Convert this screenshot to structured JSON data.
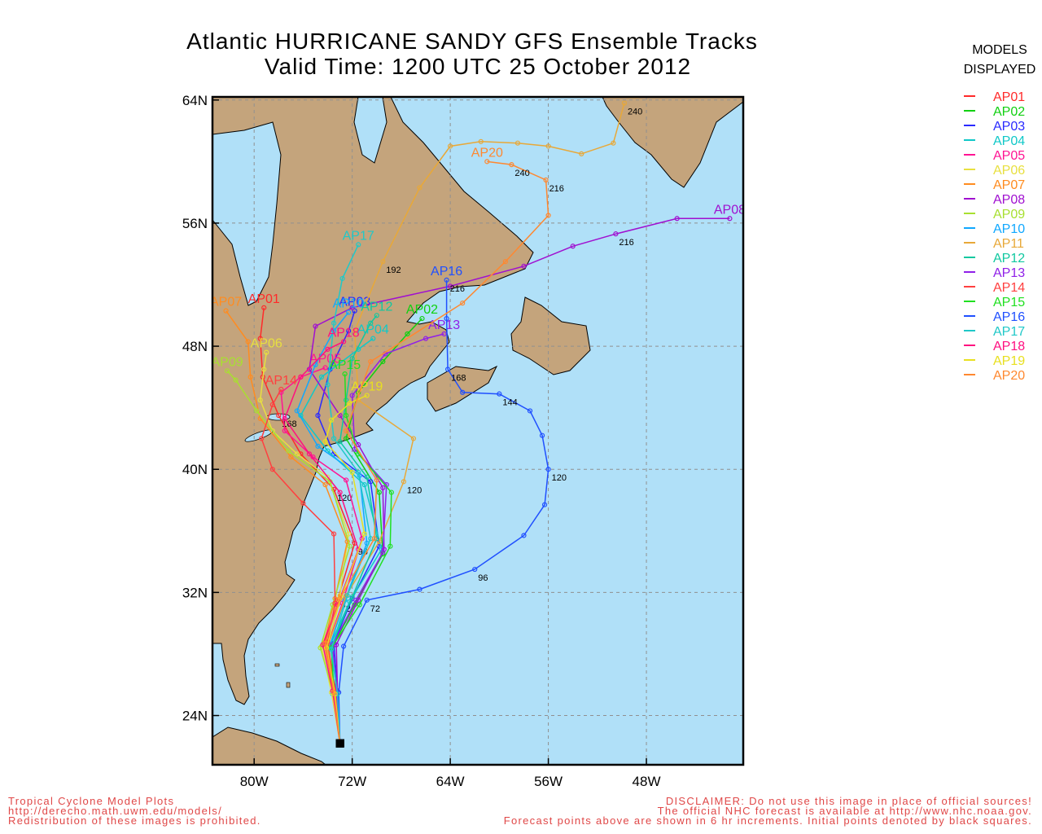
{
  "chart_data": {
    "type": "map",
    "title": "Atlantic HURRICANE SANDY GFS Ensemble Tracks",
    "subtitle": "Valid Time: 1200 UTC 25 October 2012",
    "legend_title": [
      "MODELS",
      "DISPLAYED"
    ],
    "footer_left": [
      "Tropical Cyclone Model Plots",
      "http://derecho.math.uwm.edu/models/",
      "Redistribution of these images is prohibited."
    ],
    "footer_right": [
      "DISCLAIMER: Do not use this image in place of official sources!",
      "The official NHC forecast is available at http://www.nhc.noaa.gov.",
      "Forecast points above are shown in 6 hr increments. Initial points denoted by black squares."
    ],
    "xlim": [
      -83.4,
      -40.1
    ],
    "ylim": [
      20.8,
      64.2
    ],
    "xticks": [
      {
        "value": -80,
        "label": "80W"
      },
      {
        "value": -72,
        "label": "72W"
      },
      {
        "value": -64,
        "label": "64W"
      },
      {
        "value": -56,
        "label": "56W"
      },
      {
        "value": -48,
        "label": "48W"
      }
    ],
    "yticks": [
      {
        "value": 24,
        "label": "24N"
      },
      {
        "value": 32,
        "label": "32N"
      },
      {
        "value": 40,
        "label": "40N"
      },
      {
        "value": 48,
        "label": "48N"
      },
      {
        "value": 56,
        "label": "56N"
      },
      {
        "value": 64,
        "label": "64N"
      }
    ],
    "grid": true,
    "series": [
      {
        "name": "AP01",
        "color": "#ff2a2a",
        "points": [
          [
            -73,
            22.2
          ],
          [
            -73.4,
            25.8
          ],
          [
            -74.2,
            28.8
          ],
          [
            -73.2,
            31.5
          ],
          [
            -71.8,
            35.2
          ],
          [
            -73.5,
            38.7
          ],
          [
            -76.2,
            41
          ],
          [
            -78,
            43.5
          ],
          [
            -79.3,
            46
          ],
          [
            -79.5,
            48.5
          ],
          [
            -79.2,
            50.5
          ]
        ],
        "hour_labels": [
          null,
          null,
          null,
          "72",
          "96",
          "120",
          null,
          "168",
          null,
          null,
          null
        ]
      },
      {
        "name": "AP02",
        "color": "#10d010",
        "points": [
          [
            -73,
            22.2
          ],
          [
            -73.3,
            25.5
          ],
          [
            -73.6,
            28.5
          ],
          [
            -71.8,
            31.2
          ],
          [
            -69.5,
            34.5
          ],
          [
            -69.8,
            38.5
          ],
          [
            -72.5,
            42
          ],
          [
            -71.5,
            45
          ],
          [
            -69.5,
            47
          ],
          [
            -67.5,
            48.8
          ],
          [
            -66.3,
            49.8
          ]
        ]
      },
      {
        "name": "AP03",
        "color": "#2a2aff",
        "points": [
          [
            -73,
            22.2
          ],
          [
            -73.2,
            25.6
          ],
          [
            -73.5,
            28.7
          ],
          [
            -72,
            31.6
          ],
          [
            -69.8,
            35
          ],
          [
            -70.5,
            39.2
          ],
          [
            -73.5,
            41
          ],
          [
            -74.8,
            43.5
          ],
          [
            -73.8,
            46.5
          ],
          [
            -72.3,
            49
          ],
          [
            -71.8,
            50.3
          ]
        ]
      },
      {
        "name": "AP04",
        "color": "#10c8c8",
        "points": [
          [
            -73,
            22.2
          ],
          [
            -73.6,
            25.4
          ],
          [
            -73.9,
            28.4
          ],
          [
            -72.2,
            31.4
          ],
          [
            -69.6,
            34.8
          ],
          [
            -71,
            39
          ],
          [
            -74,
            41.2
          ],
          [
            -76.2,
            43.5
          ],
          [
            -74.5,
            46
          ],
          [
            -71.5,
            47.8
          ],
          [
            -70.3,
            48.5
          ]
        ]
      },
      {
        "name": "AP05",
        "color": "#ff1493",
        "points": [
          [
            -73,
            22.2
          ],
          [
            -73.5,
            25.7
          ],
          [
            -74,
            28.6
          ],
          [
            -72.8,
            31.3
          ],
          [
            -71.2,
            35.5
          ],
          [
            -72.5,
            39.3
          ],
          [
            -75.2,
            40.8
          ],
          [
            -77.5,
            42.5
          ],
          [
            -77.8,
            45
          ],
          [
            -76.2,
            46
          ],
          [
            -74.2,
            46.6
          ]
        ]
      },
      {
        "name": "AP06",
        "color": "#e8e040",
        "points": [
          [
            -73,
            22.2
          ],
          [
            -73.7,
            25.5
          ],
          [
            -74.5,
            28.5
          ],
          [
            -73,
            31.8
          ],
          [
            -72.3,
            35.8
          ],
          [
            -74,
            39.5
          ],
          [
            -76.5,
            41
          ],
          [
            -78.5,
            42.5
          ],
          [
            -79.5,
            44.5
          ],
          [
            -79.2,
            46.5
          ],
          [
            -79,
            47.6
          ]
        ]
      },
      {
        "name": "AP07",
        "color": "#ff8c20",
        "points": [
          [
            -73,
            22.2
          ],
          [
            -73.5,
            25.5
          ],
          [
            -74.3,
            28.7
          ],
          [
            -73.4,
            31.6
          ],
          [
            -72.4,
            35.3
          ],
          [
            -74.2,
            39
          ],
          [
            -77,
            40.8
          ],
          [
            -79.5,
            43.3
          ],
          [
            -80.3,
            46
          ],
          [
            -80.5,
            48.3
          ],
          [
            -82.3,
            50.3
          ]
        ]
      },
      {
        "name": "AP08",
        "color": "#a010d0",
        "points": [
          [
            -73,
            22.2
          ],
          [
            -73.2,
            25.5
          ],
          [
            -73.3,
            28.6
          ],
          [
            -71.5,
            31.5
          ],
          [
            -69.4,
            34.8
          ],
          [
            -69.5,
            38.8
          ],
          [
            -71.5,
            41.6
          ],
          [
            -73,
            43.5
          ],
          [
            -75.5,
            46.5
          ],
          [
            -75,
            49.3
          ],
          [
            -72,
            50.5
          ],
          [
            -64,
            51.9
          ],
          [
            -58,
            53.2
          ],
          [
            -54,
            54.5
          ],
          [
            -50.5,
            55.3
          ],
          [
            -45.5,
            56.3
          ],
          [
            -41.2,
            56.3
          ]
        ],
        "hour_labels": [
          null,
          null,
          null,
          null,
          null,
          null,
          null,
          null,
          null,
          null,
          null,
          null,
          null,
          null,
          "216",
          null,
          null
        ]
      },
      {
        "name": "AP09",
        "color": "#a8e030",
        "points": [
          [
            -73,
            22.2
          ],
          [
            -73.6,
            25.6
          ],
          [
            -74.6,
            28.4
          ],
          [
            -73.6,
            31.2
          ],
          [
            -72.2,
            35
          ],
          [
            -73.8,
            39.2
          ],
          [
            -77.2,
            41.2
          ],
          [
            -79.8,
            43.8
          ],
          [
            -81.5,
            45.8
          ],
          [
            -82.2,
            46.4
          ]
        ]
      },
      {
        "name": "AP10",
        "color": "#10a8ff",
        "points": [
          [
            -73,
            22.2
          ],
          [
            -73.2,
            25.4
          ],
          [
            -73.8,
            28.6
          ],
          [
            -72.6,
            31.5
          ],
          [
            -70.8,
            35.2
          ],
          [
            -71.4,
            39.6
          ],
          [
            -74.8,
            41.5
          ],
          [
            -76.5,
            43.8
          ],
          [
            -75,
            46.8
          ],
          [
            -73.5,
            49
          ],
          [
            -72.3,
            50.2
          ]
        ]
      },
      {
        "name": "AP11",
        "color": "#e8a838",
        "points": [
          [
            -73,
            22.2
          ],
          [
            -73.4,
            25.4
          ],
          [
            -74,
            28.5
          ],
          [
            -72.5,
            31.8
          ],
          [
            -69.8,
            35.3
          ],
          [
            -67.8,
            39.2
          ],
          [
            -67,
            42
          ],
          [
            -71.5,
            44.5
          ],
          [
            -71.8,
            49
          ],
          [
            -69.5,
            53.5
          ],
          [
            -66.5,
            58.3
          ],
          [
            -64,
            61
          ],
          [
            -61.5,
            61.3
          ],
          [
            -58.5,
            61.2
          ],
          [
            -56,
            61
          ],
          [
            -53.3,
            60.5
          ],
          [
            -50.7,
            61.2
          ],
          [
            -49.8,
            63.8
          ]
        ],
        "hour_labels": [
          null,
          null,
          null,
          null,
          null,
          "120",
          null,
          null,
          null,
          "192",
          null,
          null,
          null,
          null,
          null,
          null,
          null,
          "240"
        ]
      },
      {
        "name": "AP12",
        "color": "#10c8a0",
        "points": [
          [
            -73,
            22.2
          ],
          [
            -73.5,
            25.5
          ],
          [
            -73.7,
            28.5
          ],
          [
            -72,
            31.7
          ],
          [
            -70,
            35.5
          ],
          [
            -70.8,
            39.5
          ],
          [
            -73,
            41.8
          ],
          [
            -72.5,
            44.5
          ],
          [
            -72,
            47.2
          ],
          [
            -70.5,
            49.5
          ],
          [
            -70,
            50
          ]
        ]
      },
      {
        "name": "AP13",
        "color": "#9020e8",
        "points": [
          [
            -73,
            22.2
          ],
          [
            -73.3,
            25.6
          ],
          [
            -73.6,
            28.6
          ],
          [
            -71.7,
            31.5
          ],
          [
            -69.5,
            34.6
          ],
          [
            -69.2,
            39
          ],
          [
            -71.8,
            41.3
          ],
          [
            -72,
            44.8
          ],
          [
            -69.3,
            47.5
          ],
          [
            -66,
            48.5
          ],
          [
            -64.5,
            48.8
          ]
        ]
      },
      {
        "name": "AP14",
        "color": "#ff4040",
        "points": [
          [
            -73,
            22.2
          ],
          [
            -73.4,
            25.6
          ],
          [
            -74,
            28.8
          ],
          [
            -73.4,
            31.3
          ],
          [
            -73.5,
            35.8
          ],
          [
            -76,
            37.8
          ],
          [
            -78.5,
            40
          ],
          [
            -79.4,
            42
          ],
          [
            -78.5,
            44.2
          ],
          [
            -77.8,
            45.2
          ]
        ]
      },
      {
        "name": "AP15",
        "color": "#20e020",
        "points": [
          [
            -73,
            22.2
          ],
          [
            -73.5,
            25.5
          ],
          [
            -73.7,
            28.4
          ],
          [
            -71.4,
            31.2
          ],
          [
            -68.9,
            35
          ],
          [
            -68.8,
            38.5
          ],
          [
            -71.5,
            41
          ],
          [
            -72.5,
            43.5
          ],
          [
            -72.6,
            46.2
          ]
        ]
      },
      {
        "name": "AP16",
        "color": "#2050ff",
        "points": [
          [
            -73,
            22.2
          ],
          [
            -73.1,
            25.5
          ],
          [
            -72.7,
            28.5
          ],
          [
            -70.8,
            31.5
          ],
          [
            -66.5,
            32.2
          ],
          [
            -62,
            33.5
          ],
          [
            -58,
            35.7
          ],
          [
            -56.3,
            37.7
          ],
          [
            -56,
            40
          ],
          [
            -56.5,
            42.2
          ],
          [
            -57.5,
            43.8
          ],
          [
            -60,
            44.9
          ],
          [
            -63,
            45
          ],
          [
            -64.2,
            46.5
          ],
          [
            -64.3,
            49.8
          ],
          [
            -64.3,
            52.3
          ]
        ],
        "hour_labels": [
          null,
          null,
          null,
          "72",
          null,
          "96",
          null,
          null,
          "120",
          null,
          null,
          "144",
          null,
          "168",
          null,
          "216"
        ]
      },
      {
        "name": "AP17",
        "color": "#20c8c8",
        "points": [
          [
            -73,
            22.2
          ],
          [
            -73.2,
            25.4
          ],
          [
            -73.7,
            28.3
          ],
          [
            -72.4,
            31.8
          ],
          [
            -70.5,
            35.5
          ],
          [
            -71.5,
            39.8
          ],
          [
            -73.5,
            42
          ],
          [
            -74,
            45.5
          ],
          [
            -73.5,
            49.5
          ],
          [
            -72.8,
            52.4
          ],
          [
            -71.5,
            54.6
          ]
        ]
      },
      {
        "name": "AP18",
        "color": "#ff1080",
        "points": [
          [
            -73,
            22.2
          ],
          [
            -73.6,
            25.6
          ],
          [
            -74.4,
            28.6
          ],
          [
            -73.2,
            31.2
          ],
          [
            -71.5,
            34.8
          ],
          [
            -73,
            38.5
          ],
          [
            -75.5,
            41
          ],
          [
            -77.5,
            43.3
          ],
          [
            -76.2,
            46
          ],
          [
            -74,
            47.8
          ],
          [
            -72.7,
            48.3
          ]
        ]
      },
      {
        "name": "AP19",
        "color": "#e8e020",
        "points": [
          [
            -73,
            22.2
          ],
          [
            -73.4,
            25.4
          ],
          [
            -74.1,
            28.4
          ],
          [
            -72.9,
            31.7
          ],
          [
            -71,
            35.8
          ],
          [
            -72,
            39.8
          ],
          [
            -74.2,
            41.8
          ],
          [
            -73.7,
            43.2
          ],
          [
            -72.2,
            44.3
          ],
          [
            -70.8,
            44.8
          ]
        ]
      },
      {
        "name": "AP20",
        "color": "#ff8830",
        "points": [
          [
            -73,
            22.2
          ],
          [
            -73.5,
            25.5
          ],
          [
            -74.2,
            28.7
          ],
          [
            -73,
            31.6
          ],
          [
            -70.2,
            35.5
          ],
          [
            -70,
            39.3
          ],
          [
            -72.5,
            42.5
          ],
          [
            -70.5,
            47
          ],
          [
            -63,
            50.8
          ],
          [
            -59.5,
            53.5
          ],
          [
            -56,
            56.5
          ],
          [
            -56.2,
            58.8
          ],
          [
            -59,
            59.8
          ],
          [
            -61,
            60
          ]
        ],
        "hour_labels": [
          null,
          null,
          null,
          null,
          null,
          null,
          null,
          null,
          null,
          null,
          null,
          "216",
          "240",
          null
        ]
      }
    ]
  }
}
